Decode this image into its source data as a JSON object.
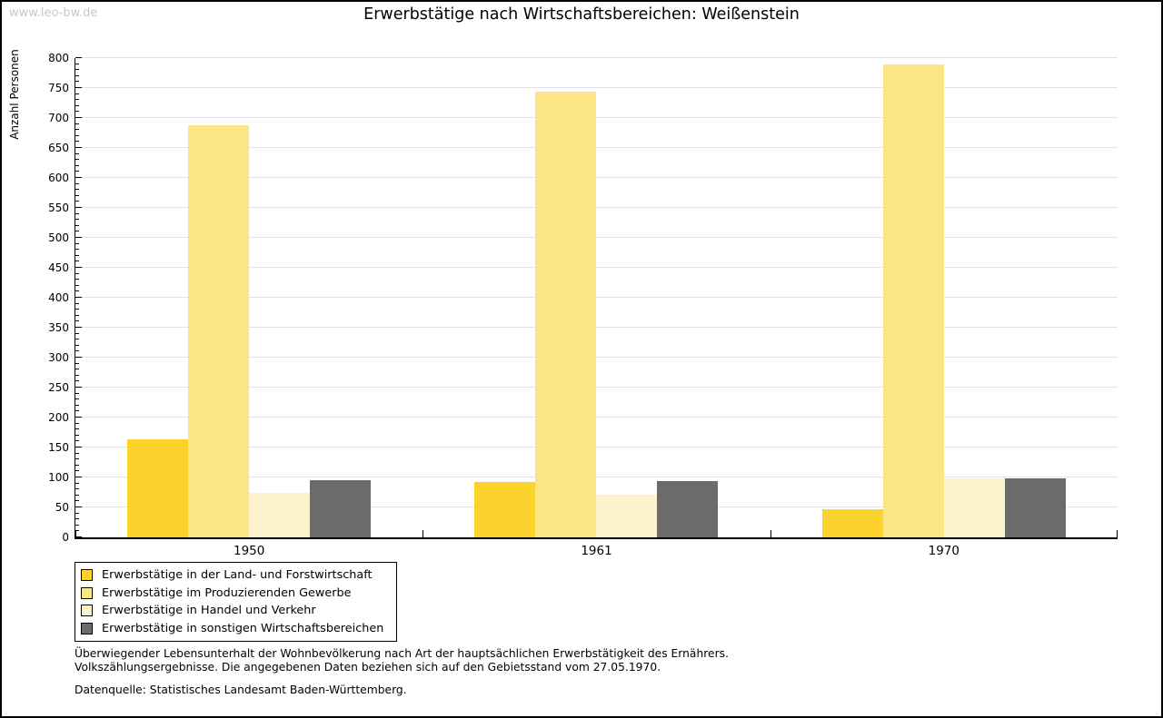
{
  "watermark": "www.leo-bw.de",
  "chart_data": {
    "type": "bar",
    "title": "Erwerbstätige nach Wirtschaftsbereichen: Weißenstein",
    "ylabel": "Anzahl Personen",
    "xlabel": "",
    "categories": [
      "1950",
      "1961",
      "1970"
    ],
    "series": [
      {
        "name": "Erwerbstätige in der Land- und Forstwirtschaft",
        "color": "#FCD32D",
        "values": [
          163,
          93,
          47
        ]
      },
      {
        "name": "Erwerbstätige im Produzierenden Gewerbe",
        "color": "#FCE584",
        "values": [
          688,
          744,
          789
        ]
      },
      {
        "name": "Erwerbstätige in Handel und Verkehr",
        "color": "#FCF3CC",
        "values": [
          75,
          71,
          98
        ]
      },
      {
        "name": "Erwerbstätige in sonstigen Wirtschaftsbereichen",
        "color": "#6B6B6B",
        "values": [
          96,
          94,
          99
        ]
      }
    ],
    "ylim": [
      0,
      800
    ],
    "ytick_major": 50,
    "ytick_minor": 10,
    "grid": true,
    "legend_position": "bottom-left"
  },
  "footer": {
    "description_line1": "Überwiegender Lebensunterhalt der Wohnbevölkerung nach Art der hauptsächlichen Erwerbstätigkeit des Ernährers.",
    "description_line2": "Volkszählungsergebnisse. Die angegebenen Daten beziehen sich auf den Gebietsstand vom 27.05.1970.",
    "source": "Datenquelle: Statistisches Landesamt Baden-Württemberg."
  }
}
